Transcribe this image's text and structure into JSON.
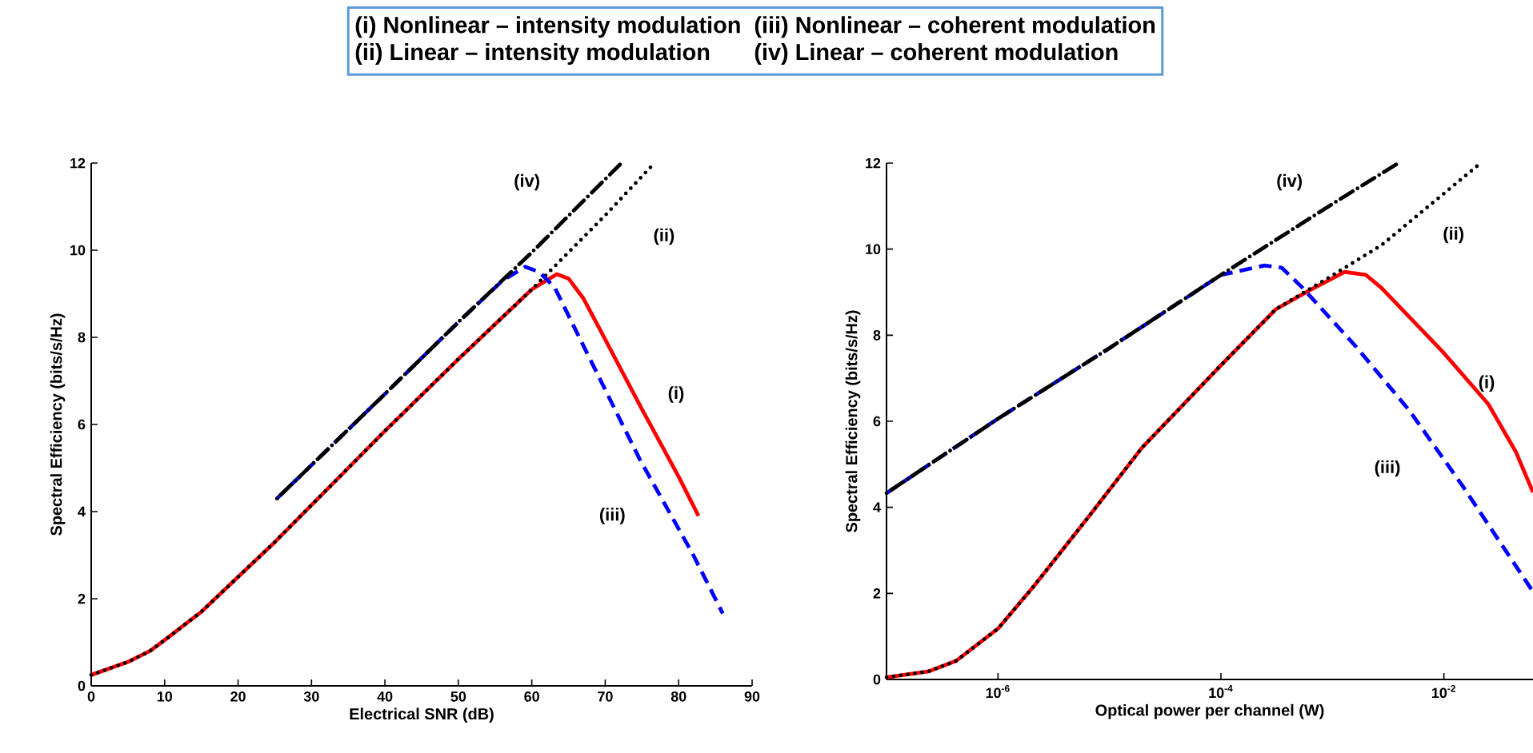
{
  "chart_data": [
    {
      "type": "line",
      "xlabel": "Electrical SNR (dB)",
      "ylabel": "Spectral Efficiency (bits/s/Hz)",
      "xlim": [
        0,
        90
      ],
      "ylim": [
        0,
        12
      ],
      "xticks": [
        0,
        10,
        20,
        30,
        40,
        50,
        60,
        70,
        80,
        90
      ],
      "yticks": [
        0,
        2,
        4,
        6,
        8,
        10,
        12
      ],
      "annotations": [
        "(i)    Nonlinear – intensity modulation",
        "(ii)   Linear – intensity modulation",
        "(iii) Nonlinear – coherent modulation",
        "(iv) Linear – coherent modulation"
      ],
      "series": [
        {
          "name": "(i)",
          "color": "#ff0000",
          "line_style": "solid",
          "x": [
            0,
            5,
            8,
            10,
            15,
            20,
            25,
            30,
            40,
            50,
            60,
            63.4,
            65,
            67,
            70,
            75,
            80,
            82.7
          ],
          "values": [
            0.25,
            0.55,
            0.8,
            1.05,
            1.7,
            2.5,
            3.3,
            4.15,
            5.85,
            7.5,
            9.1,
            9.45,
            9.35,
            8.9,
            7.95,
            6.35,
            4.8,
            3.9
          ]
        },
        {
          "name": "(ii)",
          "color": "#000000",
          "line_style": "dotted",
          "x": [
            0,
            5,
            8,
            10,
            15,
            20,
            25,
            30,
            40,
            50,
            60,
            70,
            76.7
          ],
          "values": [
            0.25,
            0.55,
            0.8,
            1.05,
            1.7,
            2.5,
            3.3,
            4.15,
            5.85,
            7.5,
            9.1,
            10.8,
            12
          ]
        },
        {
          "name": "(iii)",
          "color": "#0000ff",
          "line_style": "dashed",
          "x": [
            25.3,
            40,
            50,
            56,
            59.1,
            61,
            63.1,
            67.4,
            74.7,
            82,
            86
          ],
          "values": [
            4.3,
            6.7,
            8.35,
            9.3,
            9.62,
            9.5,
            9.15,
            7.68,
            5.2,
            3.0,
            1.66
          ]
        },
        {
          "name": "(iv)",
          "color": "#000000",
          "line_style": "dashdot",
          "x": [
            25.3,
            40,
            50,
            60,
            72.2
          ],
          "values": [
            4.3,
            6.7,
            8.35,
            9.95,
            12
          ]
        }
      ]
    },
    {
      "type": "line",
      "log": "x",
      "xlabel": "Optical power per channel (W)",
      "ylabel": "Spectral Efficiency (bits/s/Hz)",
      "xlim": [
        1e-07,
        0.063
      ],
      "ylim": [
        0,
        12
      ],
      "xticks": [
        {
          "value": 1e-06,
          "label": "10$^{-6}$"
        },
        {
          "value": 0.0001,
          "label": "10$^{-4}$"
        },
        {
          "value": 0.01,
          "label": "10$^{-2}$"
        }
      ],
      "yticks": [
        0,
        2,
        4,
        6,
        8,
        10,
        12
      ],
      "series": [
        {
          "name": "(i)",
          "color": "#ff0000",
          "line_style": "solid",
          "x": [
            1e-07,
            2.4e-07,
            4.2e-07,
            1e-06,
            2.1e-06,
            6.5e-06,
            1.95e-05,
            0.0001,
            0.00031,
            0.00063,
            0.00129,
            0.002,
            0.00275,
            0.005,
            0.0098,
            0.025,
            0.044,
            0.063
          ],
          "values": [
            0.05,
            0.19,
            0.43,
            1.18,
            2.17,
            3.78,
            5.38,
            7.3,
            8.6,
            9.05,
            9.47,
            9.4,
            9.1,
            8.4,
            7.61,
            6.4,
            5.3,
            4.35
          ]
        },
        {
          "name": "(ii)",
          "color": "#000000",
          "line_style": "dotted",
          "x": [
            1e-07,
            2.4e-07,
            4.2e-07,
            1e-06,
            2.1e-06,
            6.5e-06,
            1.95e-05,
            0.0001,
            0.00031,
            0.00093,
            0.00275,
            0.0214
          ],
          "values": [
            0.05,
            0.19,
            0.43,
            1.18,
            2.17,
            3.78,
            5.38,
            7.3,
            8.6,
            9.34,
            10.09,
            12
          ]
        },
        {
          "name": "(iii)",
          "color": "#0000ff",
          "line_style": "dashed",
          "x": [
            1e-07,
            1e-06,
            1e-05,
            0.0001,
            0.000245,
            0.00035,
            0.00054,
            0.00162,
            0.0049,
            0.0145,
            0.063
          ],
          "values": [
            4.33,
            6.06,
            7.7,
            9.4,
            9.62,
            9.57,
            9.1,
            7.74,
            6.25,
            4.52,
            2.04
          ]
        },
        {
          "name": "(iv)",
          "color": "#000000",
          "line_style": "dashdot",
          "x": [
            1e-07,
            1e-06,
            1e-05,
            0.0001,
            0.001,
            0.0039
          ],
          "values": [
            4.33,
            6.06,
            7.7,
            9.4,
            11.05,
            12
          ]
        }
      ]
    }
  ]
}
